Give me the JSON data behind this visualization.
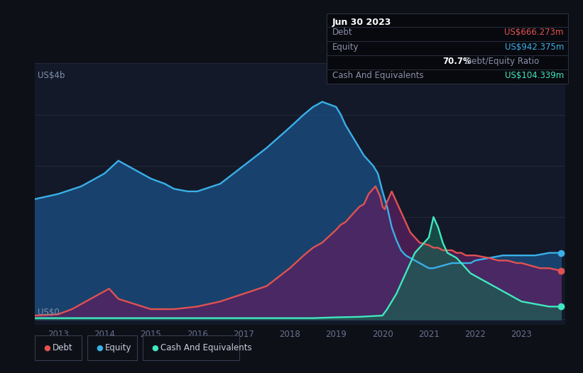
{
  "bg_color": "#0d1117",
  "plot_bg_color": "#131929",
  "grid_color": "#252d3d",
  "ylabel_top": "US$4b",
  "ylabel_bottom": "US$0",
  "xlim_start": 2012.5,
  "xlim_end": 2023.95,
  "ylim_min": -0.02,
  "ylim_max": 1.0,
  "xtick_labels": [
    "2013",
    "2014",
    "2015",
    "2016",
    "2017",
    "2018",
    "2019",
    "2020",
    "2021",
    "2022",
    "2023"
  ],
  "xtick_positions": [
    2013,
    2014,
    2015,
    2016,
    2017,
    2018,
    2019,
    2020,
    2021,
    2022,
    2023
  ],
  "debt_color": "#e05252",
  "equity_color": "#3ab0e8",
  "cash_color": "#40e8c0",
  "debt_fill_color": "#5a2060",
  "equity_fill_color": "#1a4a7a",
  "cash_fill_color": "#1a6050",
  "tooltip_title": "Jun 30 2023",
  "tooltip_debt_label": "Debt",
  "tooltip_debt_value": "US$666.273m",
  "tooltip_equity_label": "Equity",
  "tooltip_equity_value": "US$942.375m",
  "tooltip_ratio": "70.7%",
  "tooltip_ratio_text": "Debt/Equity Ratio",
  "tooltip_cash_label": "Cash And Equivalents",
  "tooltip_cash_value": "US$104.339m",
  "legend_debt": "Debt",
  "legend_equity": "Equity",
  "legend_cash": "Cash And Equivalents",
  "equity_x": [
    2012.5,
    2013.0,
    2013.5,
    2014.0,
    2014.3,
    2014.5,
    2014.7,
    2015.0,
    2015.3,
    2015.5,
    2015.8,
    2016.0,
    2016.5,
    2017.0,
    2017.5,
    2018.0,
    2018.3,
    2018.5,
    2018.7,
    2018.85,
    2019.0,
    2019.1,
    2019.2,
    2019.3,
    2019.4,
    2019.5,
    2019.6,
    2019.7,
    2019.8,
    2019.9,
    2020.0,
    2020.1,
    2020.2,
    2020.3,
    2020.4,
    2020.5,
    2020.6,
    2020.7,
    2020.8,
    2020.9,
    2021.0,
    2021.1,
    2021.3,
    2021.5,
    2021.7,
    2021.9,
    2022.0,
    2022.3,
    2022.6,
    2022.9,
    2023.0,
    2023.3,
    2023.6,
    2023.85
  ],
  "equity_y": [
    0.47,
    0.49,
    0.52,
    0.57,
    0.62,
    0.6,
    0.58,
    0.55,
    0.53,
    0.51,
    0.5,
    0.5,
    0.53,
    0.6,
    0.67,
    0.75,
    0.8,
    0.83,
    0.85,
    0.84,
    0.83,
    0.8,
    0.76,
    0.73,
    0.7,
    0.67,
    0.64,
    0.62,
    0.6,
    0.57,
    0.5,
    0.44,
    0.36,
    0.31,
    0.27,
    0.25,
    0.24,
    0.23,
    0.22,
    0.21,
    0.2,
    0.2,
    0.21,
    0.22,
    0.22,
    0.22,
    0.23,
    0.24,
    0.25,
    0.25,
    0.25,
    0.25,
    0.26,
    0.26
  ],
  "debt_x": [
    2012.5,
    2013.0,
    2013.3,
    2013.5,
    2013.7,
    2013.9,
    2014.0,
    2014.1,
    2014.2,
    2014.3,
    2015.0,
    2015.5,
    2016.0,
    2016.5,
    2017.0,
    2017.5,
    2018.0,
    2018.3,
    2018.5,
    2018.7,
    2019.0,
    2019.1,
    2019.2,
    2019.3,
    2019.4,
    2019.5,
    2019.6,
    2019.65,
    2019.7,
    2019.8,
    2019.85,
    2019.9,
    2019.95,
    2020.0,
    2020.05,
    2020.1,
    2020.15,
    2020.2,
    2020.25,
    2020.3,
    2020.35,
    2020.4,
    2020.45,
    2020.5,
    2020.55,
    2020.6,
    2020.65,
    2020.7,
    2020.75,
    2020.8,
    2021.0,
    2021.1,
    2021.2,
    2021.3,
    2021.4,
    2021.5,
    2021.6,
    2021.7,
    2021.8,
    2021.9,
    2022.0,
    2022.3,
    2022.5,
    2022.7,
    2022.9,
    2023.0,
    2023.2,
    2023.4,
    2023.6,
    2023.85
  ],
  "debt_y": [
    0.015,
    0.02,
    0.04,
    0.06,
    0.08,
    0.1,
    0.11,
    0.12,
    0.1,
    0.08,
    0.04,
    0.04,
    0.05,
    0.07,
    0.1,
    0.13,
    0.2,
    0.25,
    0.28,
    0.3,
    0.35,
    0.37,
    0.38,
    0.4,
    0.42,
    0.44,
    0.45,
    0.47,
    0.49,
    0.51,
    0.52,
    0.5,
    0.48,
    0.44,
    0.43,
    0.46,
    0.48,
    0.5,
    0.48,
    0.46,
    0.44,
    0.42,
    0.4,
    0.38,
    0.36,
    0.34,
    0.33,
    0.32,
    0.31,
    0.3,
    0.29,
    0.28,
    0.28,
    0.27,
    0.27,
    0.27,
    0.26,
    0.26,
    0.25,
    0.25,
    0.25,
    0.24,
    0.23,
    0.23,
    0.22,
    0.22,
    0.21,
    0.2,
    0.2,
    0.19
  ],
  "cash_x": [
    2012.5,
    2013.0,
    2013.5,
    2014.0,
    2014.5,
    2015.0,
    2015.5,
    2016.0,
    2016.5,
    2017.0,
    2017.5,
    2018.0,
    2018.5,
    2019.0,
    2019.5,
    2020.0,
    2020.1,
    2020.2,
    2020.3,
    2020.4,
    2020.5,
    2020.6,
    2020.7,
    2020.8,
    2020.9,
    2021.0,
    2021.05,
    2021.1,
    2021.15,
    2021.2,
    2021.25,
    2021.3,
    2021.35,
    2021.4,
    2021.5,
    2021.6,
    2021.7,
    2021.8,
    2021.9,
    2022.0,
    2022.1,
    2022.2,
    2022.3,
    2022.4,
    2022.5,
    2022.6,
    2022.7,
    2022.8,
    2022.9,
    2023.0,
    2023.3,
    2023.6,
    2023.85
  ],
  "cash_y": [
    0.005,
    0.005,
    0.005,
    0.005,
    0.005,
    0.005,
    0.005,
    0.005,
    0.005,
    0.005,
    0.005,
    0.005,
    0.005,
    0.008,
    0.01,
    0.015,
    0.04,
    0.07,
    0.1,
    0.14,
    0.18,
    0.22,
    0.26,
    0.28,
    0.3,
    0.32,
    0.36,
    0.4,
    0.38,
    0.36,
    0.33,
    0.3,
    0.28,
    0.26,
    0.25,
    0.24,
    0.22,
    0.2,
    0.18,
    0.17,
    0.16,
    0.15,
    0.14,
    0.13,
    0.12,
    0.11,
    0.1,
    0.09,
    0.08,
    0.07,
    0.06,
    0.05,
    0.05
  ]
}
